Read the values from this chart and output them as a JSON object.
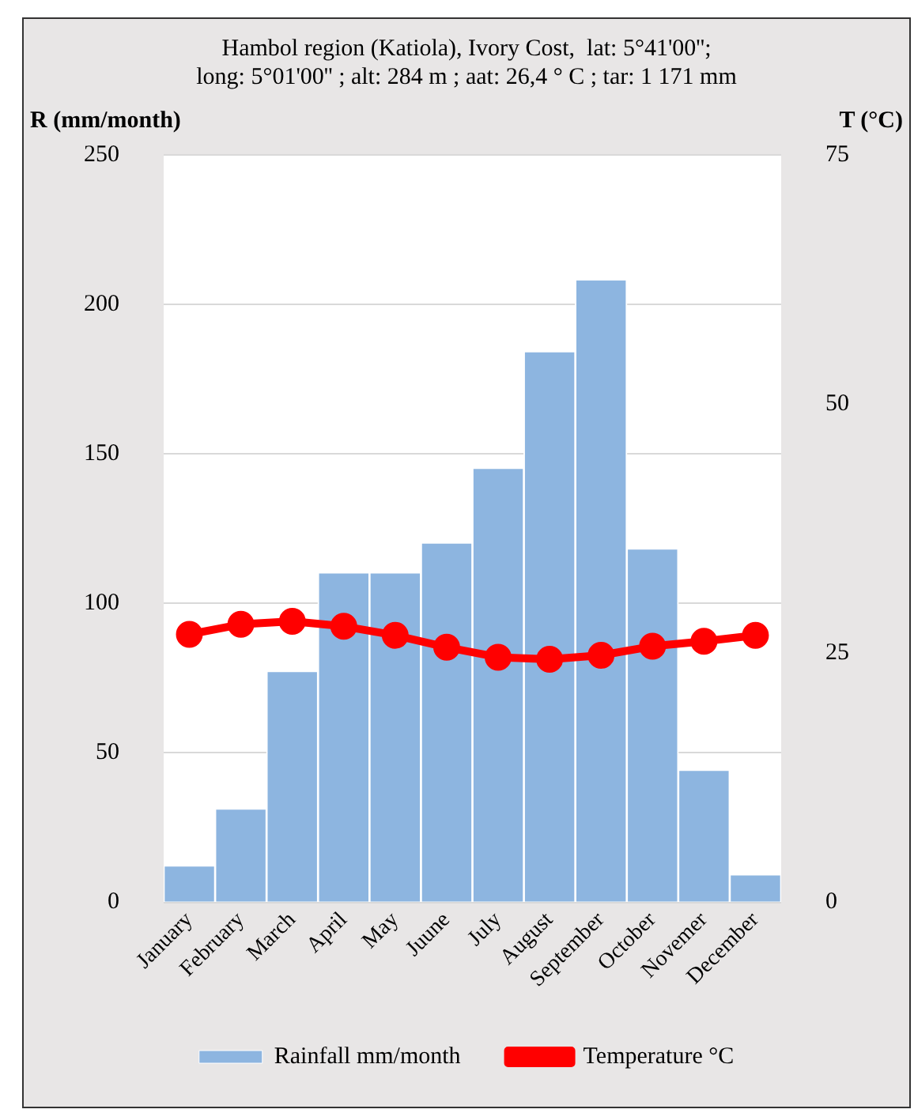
{
  "chart_data": {
    "type": "bar",
    "title": "Hambol region (Katiola), Ivory Cost,  lat: 5°41'00'';\nlong: 5°01'00'' ; alt: 284 m ; aat: 26,4 ° C ; tar: 1 171 mm",
    "ylabel": "R (mm/month)",
    "y2label": "T (°C)",
    "categories": [
      "January",
      "February",
      "March",
      "April",
      "May",
      "Juune",
      "July",
      "August",
      "September",
      "October",
      "Novemer",
      "December"
    ],
    "series": [
      {
        "name": "Rainfall mm/month",
        "color": "#8db5e0",
        "values": [
          12,
          31,
          77,
          110,
          110,
          120,
          145,
          184,
          208,
          118,
          44,
          9
        ]
      },
      {
        "name": "Temperature °C",
        "type": "line",
        "axis": "y2",
        "color": "#ff0000",
        "marker": "circle",
        "values": [
          26.9,
          27.9,
          28.2,
          27.7,
          26.8,
          25.6,
          24.6,
          24.4,
          24.8,
          25.7,
          26.2,
          26.8
        ]
      }
    ],
    "ylim": [
      0,
      250
    ],
    "yticks": [
      0,
      50,
      100,
      150,
      200,
      250
    ],
    "y2lim": [
      0,
      75
    ],
    "y2ticks": [
      0,
      25,
      50,
      75
    ],
    "grid": "y",
    "legend": "bottom"
  }
}
